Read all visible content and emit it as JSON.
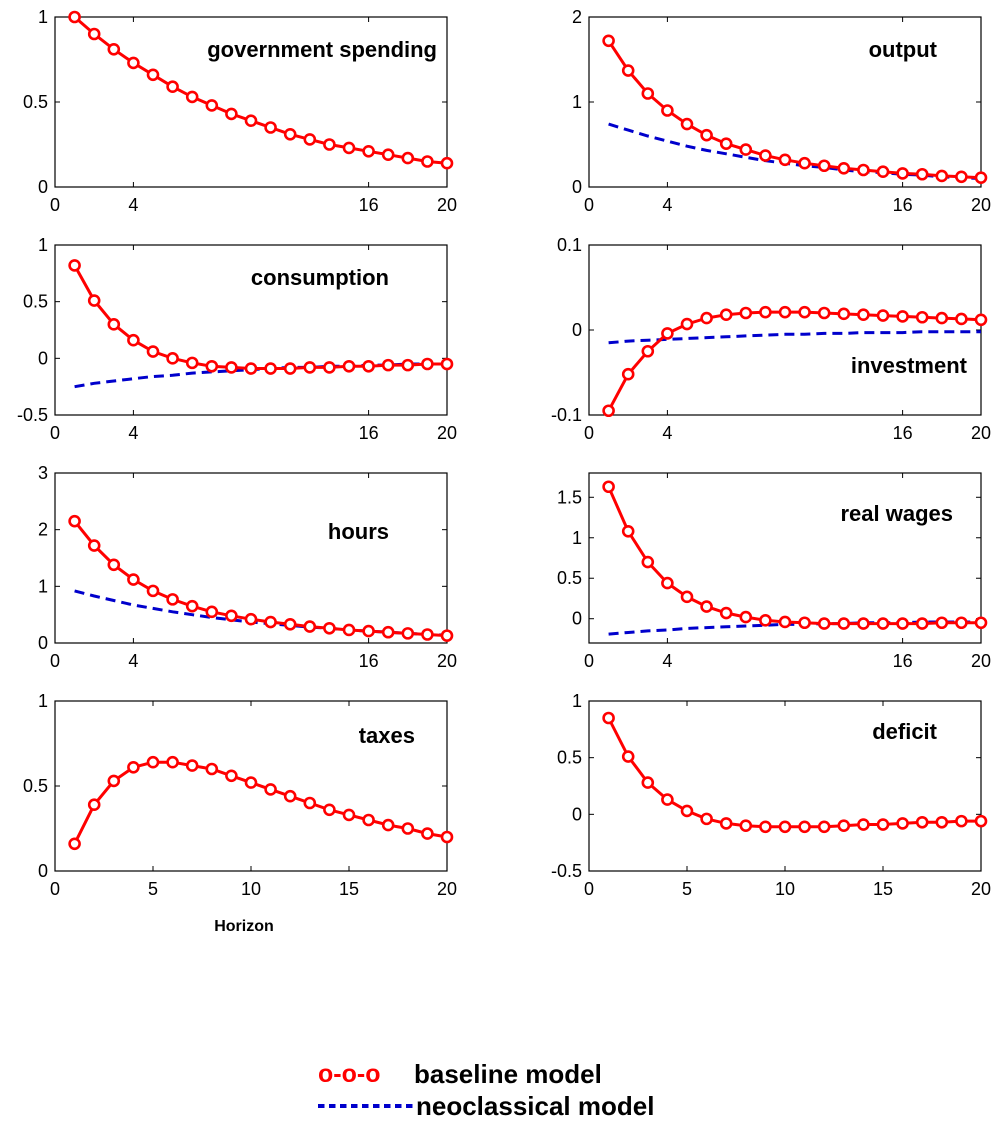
{
  "legend": {
    "baseline_symbol": "o-o-o",
    "baseline_label": "baseline model",
    "neoclassical_symbol": "--------",
    "neoclassical_label": "neoclassical model"
  },
  "colors": {
    "baseline": "#ff0000",
    "neoclassical": "#0000cc",
    "axis": "#000000"
  },
  "xlabel": "Horizon",
  "chart_data": [
    {
      "type": "line",
      "title": "government spending",
      "xlim": [
        0,
        20
      ],
      "ylim": [
        0,
        1
      ],
      "xticks": [
        0,
        4,
        16,
        20
      ],
      "yticks": [
        0,
        0.5,
        1
      ],
      "ytick_labels": [
        "0",
        "0.5",
        "1"
      ],
      "title_anchor": "top-right",
      "series": [
        {
          "name": "baseline model",
          "style": "solid-circles",
          "x": [
            1,
            2,
            3,
            4,
            5,
            6,
            7,
            8,
            9,
            10,
            11,
            12,
            13,
            14,
            15,
            16,
            17,
            18,
            19,
            20
          ],
          "values": [
            1.0,
            0.9,
            0.81,
            0.73,
            0.66,
            0.59,
            0.53,
            0.48,
            0.43,
            0.39,
            0.35,
            0.31,
            0.28,
            0.25,
            0.23,
            0.21,
            0.19,
            0.17,
            0.15,
            0.14
          ]
        }
      ]
    },
    {
      "type": "line",
      "title": "output",
      "xlim": [
        0,
        20
      ],
      "ylim": [
        0,
        2
      ],
      "xticks": [
        0,
        4,
        16,
        20
      ],
      "yticks": [
        0,
        1,
        2
      ],
      "ytick_labels": [
        "0",
        "1",
        "2"
      ],
      "title_anchor": "top-right",
      "series": [
        {
          "name": "baseline model",
          "style": "solid-circles",
          "x": [
            1,
            2,
            3,
            4,
            5,
            6,
            7,
            8,
            9,
            10,
            11,
            12,
            13,
            14,
            15,
            16,
            17,
            18,
            19,
            20
          ],
          "values": [
            1.72,
            1.37,
            1.1,
            0.9,
            0.74,
            0.61,
            0.51,
            0.44,
            0.37,
            0.32,
            0.28,
            0.25,
            0.22,
            0.2,
            0.18,
            0.16,
            0.15,
            0.13,
            0.12,
            0.11
          ]
        },
        {
          "name": "neoclassical model",
          "style": "dashed",
          "x": [
            1,
            2,
            3,
            4,
            5,
            6,
            7,
            8,
            9,
            10,
            11,
            12,
            13,
            14,
            15,
            16,
            17,
            18,
            19,
            20
          ],
          "values": [
            0.74,
            0.67,
            0.6,
            0.54,
            0.48,
            0.43,
            0.39,
            0.35,
            0.31,
            0.28,
            0.25,
            0.23,
            0.2,
            0.18,
            0.17,
            0.15,
            0.14,
            0.12,
            0.11,
            0.1
          ]
        }
      ]
    },
    {
      "type": "line",
      "title": "consumption",
      "xlim": [
        0,
        20
      ],
      "ylim": [
        -0.5,
        1
      ],
      "xticks": [
        0,
        4,
        16,
        20
      ],
      "yticks": [
        -0.5,
        0,
        0.5,
        1
      ],
      "ytick_labels": [
        "-0.5",
        "0",
        "0.5",
        "1"
      ],
      "title_anchor": "top-right",
      "series": [
        {
          "name": "baseline model",
          "style": "solid-circles",
          "x": [
            1,
            2,
            3,
            4,
            5,
            6,
            7,
            8,
            9,
            10,
            11,
            12,
            13,
            14,
            15,
            16,
            17,
            18,
            19,
            20
          ],
          "values": [
            0.82,
            0.51,
            0.3,
            0.16,
            0.06,
            0.0,
            -0.04,
            -0.07,
            -0.08,
            -0.09,
            -0.09,
            -0.09,
            -0.08,
            -0.08,
            -0.07,
            -0.07,
            -0.06,
            -0.06,
            -0.05,
            -0.05
          ]
        },
        {
          "name": "neoclassical model",
          "style": "dashed",
          "x": [
            1,
            2,
            3,
            4,
            5,
            6,
            7,
            8,
            9,
            10,
            11,
            12,
            13,
            14,
            15,
            16,
            17,
            18,
            19,
            20
          ],
          "values": [
            -0.25,
            -0.22,
            -0.2,
            -0.18,
            -0.16,
            -0.15,
            -0.13,
            -0.12,
            -0.11,
            -0.1,
            -0.09,
            -0.08,
            -0.08,
            -0.07,
            -0.07,
            -0.06,
            -0.06,
            -0.05,
            -0.05,
            -0.05
          ]
        }
      ]
    },
    {
      "type": "line",
      "title": "investment",
      "xlim": [
        0,
        20
      ],
      "ylim": [
        -0.1,
        0.1
      ],
      "xticks": [
        0,
        4,
        16,
        20
      ],
      "yticks": [
        -0.1,
        0,
        0.1
      ],
      "ytick_labels": [
        "-0.1",
        "0",
        "0.1"
      ],
      "title_anchor": "lower-right",
      "series": [
        {
          "name": "baseline model",
          "style": "solid-circles",
          "x": [
            1,
            2,
            3,
            4,
            5,
            6,
            7,
            8,
            9,
            10,
            11,
            12,
            13,
            14,
            15,
            16,
            17,
            18,
            19,
            20
          ],
          "values": [
            -0.095,
            -0.052,
            -0.025,
            -0.004,
            0.007,
            0.014,
            0.018,
            0.02,
            0.021,
            0.021,
            0.021,
            0.02,
            0.019,
            0.018,
            0.017,
            0.016,
            0.015,
            0.014,
            0.013,
            0.012
          ]
        },
        {
          "name": "neoclassical model",
          "style": "dashed",
          "x": [
            1,
            2,
            3,
            4,
            5,
            6,
            7,
            8,
            9,
            10,
            11,
            12,
            13,
            14,
            15,
            16,
            17,
            18,
            19,
            20
          ],
          "values": [
            -0.015,
            -0.013,
            -0.012,
            -0.011,
            -0.01,
            -0.009,
            -0.008,
            -0.007,
            -0.006,
            -0.005,
            -0.005,
            -0.004,
            -0.004,
            -0.003,
            -0.003,
            -0.003,
            -0.002,
            -0.002,
            -0.002,
            -0.002
          ]
        }
      ]
    },
    {
      "type": "line",
      "title": "hours",
      "xlim": [
        0,
        20
      ],
      "ylim": [
        0,
        3
      ],
      "xticks": [
        0,
        4,
        16,
        20
      ],
      "yticks": [
        0,
        1,
        2,
        3
      ],
      "ytick_labels": [
        "0",
        "1",
        "2",
        "3"
      ],
      "title_anchor": "mid-right",
      "series": [
        {
          "name": "baseline model",
          "style": "solid-circles",
          "x": [
            1,
            2,
            3,
            4,
            5,
            6,
            7,
            8,
            9,
            10,
            11,
            12,
            13,
            14,
            15,
            16,
            17,
            18,
            19,
            20
          ],
          "values": [
            2.15,
            1.72,
            1.38,
            1.12,
            0.92,
            0.77,
            0.65,
            0.55,
            0.48,
            0.42,
            0.37,
            0.33,
            0.29,
            0.26,
            0.23,
            0.21,
            0.19,
            0.17,
            0.15,
            0.13
          ]
        },
        {
          "name": "neoclassical model",
          "style": "dashed",
          "x": [
            1,
            2,
            3,
            4,
            5,
            6,
            7,
            8,
            9,
            10,
            11,
            12,
            13,
            14,
            15,
            16,
            17,
            18,
            19,
            20
          ],
          "values": [
            0.92,
            0.83,
            0.75,
            0.67,
            0.61,
            0.55,
            0.5,
            0.45,
            0.41,
            0.37,
            0.34,
            0.31,
            0.28,
            0.26,
            0.23,
            0.21,
            0.19,
            0.17,
            0.15,
            0.14
          ]
        }
      ]
    },
    {
      "type": "line",
      "title": "real wages",
      "xlim": [
        0,
        20
      ],
      "ylim": [
        -0.3,
        1.8
      ],
      "xticks": [
        0,
        4,
        16,
        20
      ],
      "yticks": [
        0,
        0.5,
        1,
        1.5
      ],
      "ytick_labels": [
        "0",
        "0.5",
        "1",
        "1.5"
      ],
      "title_anchor": "mid-right",
      "series": [
        {
          "name": "baseline model",
          "style": "solid-circles",
          "x": [
            1,
            2,
            3,
            4,
            5,
            6,
            7,
            8,
            9,
            10,
            11,
            12,
            13,
            14,
            15,
            16,
            17,
            18,
            19,
            20
          ],
          "values": [
            1.63,
            1.08,
            0.7,
            0.44,
            0.27,
            0.15,
            0.07,
            0.02,
            -0.02,
            -0.04,
            -0.05,
            -0.06,
            -0.06,
            -0.06,
            -0.06,
            -0.06,
            -0.06,
            -0.05,
            -0.05,
            -0.05
          ]
        },
        {
          "name": "neoclassical model",
          "style": "dashed",
          "x": [
            1,
            2,
            3,
            4,
            5,
            6,
            7,
            8,
            9,
            10,
            11,
            12,
            13,
            14,
            15,
            16,
            17,
            18,
            19,
            20
          ],
          "values": [
            -0.19,
            -0.17,
            -0.15,
            -0.14,
            -0.12,
            -0.11,
            -0.1,
            -0.09,
            -0.08,
            -0.07,
            -0.07,
            -0.06,
            -0.06,
            -0.05,
            -0.05,
            -0.05,
            -0.04,
            -0.04,
            -0.04,
            -0.04
          ]
        }
      ]
    },
    {
      "type": "line",
      "title": "taxes",
      "xlim": [
        0,
        20
      ],
      "ylim": [
        0,
        1
      ],
      "xticks": [
        0,
        5,
        10,
        15,
        20
      ],
      "yticks": [
        0,
        0.5,
        1
      ],
      "ytick_labels": [
        "0",
        "0.5",
        "1"
      ],
      "title_anchor": "top-right",
      "series": [
        {
          "name": "baseline model",
          "style": "solid-circles",
          "x": [
            1,
            2,
            3,
            4,
            5,
            6,
            7,
            8,
            9,
            10,
            11,
            12,
            13,
            14,
            15,
            16,
            17,
            18,
            19,
            20
          ],
          "values": [
            0.16,
            0.39,
            0.53,
            0.61,
            0.64,
            0.64,
            0.62,
            0.6,
            0.56,
            0.52,
            0.48,
            0.44,
            0.4,
            0.36,
            0.33,
            0.3,
            0.27,
            0.25,
            0.22,
            0.2
          ]
        }
      ]
    },
    {
      "type": "line",
      "title": "deficit",
      "xlim": [
        0,
        20
      ],
      "ylim": [
        -0.5,
        1
      ],
      "xticks": [
        0,
        5,
        10,
        15,
        20
      ],
      "yticks": [
        -0.5,
        0,
        0.5,
        1
      ],
      "ytick_labels": [
        "-0.5",
        "0",
        "0.5",
        "1"
      ],
      "title_anchor": "top-right",
      "series": [
        {
          "name": "baseline model",
          "style": "solid-circles",
          "x": [
            1,
            2,
            3,
            4,
            5,
            6,
            7,
            8,
            9,
            10,
            11,
            12,
            13,
            14,
            15,
            16,
            17,
            18,
            19,
            20
          ],
          "values": [
            0.85,
            0.51,
            0.28,
            0.13,
            0.03,
            -0.04,
            -0.08,
            -0.1,
            -0.11,
            -0.11,
            -0.11,
            -0.11,
            -0.1,
            -0.09,
            -0.09,
            -0.08,
            -0.07,
            -0.07,
            -0.06,
            -0.06
          ]
        }
      ]
    }
  ]
}
